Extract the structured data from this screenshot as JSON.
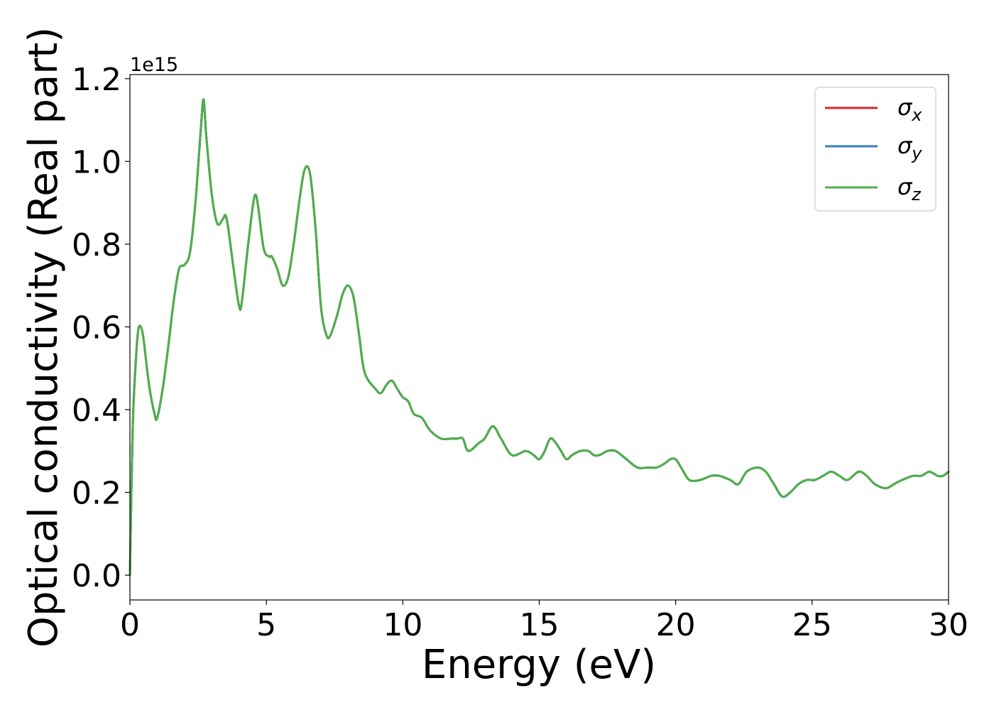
{
  "chart_data": {
    "type": "line",
    "title": "",
    "xlabel": "Energy (eV)",
    "ylabel": "Optical conductivity (Real part)",
    "y_offset_label": "1e15",
    "xlim": [
      0,
      30
    ],
    "ylim": [
      -0.06,
      1.21
    ],
    "y_scale_factor": 1000000000000000.0,
    "x_ticks": [
      0,
      5,
      10,
      15,
      20,
      25,
      30
    ],
    "x_tick_labels": [
      "0",
      "5",
      "10",
      "15",
      "20",
      "25",
      "30"
    ],
    "y_ticks": [
      0.0,
      0.2,
      0.4,
      0.6,
      0.8,
      1.0,
      1.2
    ],
    "y_tick_labels": [
      "0.0",
      "0.2",
      "0.4",
      "0.6",
      "0.8",
      "1.0",
      "1.2"
    ],
    "grid": false,
    "legend_position": "top-right",
    "x": [
      0,
      0.1,
      0.2,
      0.3,
      0.4,
      0.5,
      0.7,
      0.9,
      1.0,
      1.2,
      1.4,
      1.6,
      1.8,
      2.0,
      2.2,
      2.4,
      2.6,
      2.7,
      2.8,
      3.0,
      3.2,
      3.4,
      3.5,
      3.6,
      3.8,
      4.0,
      4.1,
      4.3,
      4.5,
      4.6,
      4.7,
      4.9,
      5.1,
      5.2,
      5.4,
      5.6,
      5.8,
      6.0,
      6.2,
      6.4,
      6.6,
      6.8,
      7.0,
      7.2,
      7.35,
      7.6,
      7.8,
      8.0,
      8.2,
      8.4,
      8.6,
      9.0,
      9.2,
      9.4,
      9.6,
      9.8,
      10.0,
      10.2,
      10.4,
      10.7,
      11.0,
      11.4,
      11.8,
      12.0,
      12.2,
      12.4,
      12.8,
      13.0,
      13.3,
      13.6,
      14.0,
      14.5,
      14.8,
      15.0,
      15.2,
      15.4,
      15.6,
      15.8,
      16.0,
      16.2,
      16.5,
      16.8,
      17.0,
      17.2,
      17.5,
      17.8,
      18.2,
      18.6,
      19.0,
      19.3,
      19.6,
      19.8,
      20.0,
      20.2,
      20.5,
      20.9,
      21.3,
      21.6,
      22.0,
      22.3,
      22.6,
      23.0,
      23.3,
      23.6,
      23.9,
      24.2,
      24.5,
      24.8,
      25.1,
      25.4,
      25.7,
      26.0,
      26.3,
      26.7,
      27.0,
      27.3,
      27.7,
      28.0,
      28.3,
      28.7,
      29.0,
      29.3,
      29.6,
      29.8,
      30.0
    ],
    "series": [
      {
        "name": "σx",
        "color": "#d62728",
        "values": [
          0.0,
          0.35,
          0.5,
          0.59,
          0.6,
          0.57,
          0.46,
          0.39,
          0.38,
          0.45,
          0.55,
          0.66,
          0.74,
          0.75,
          0.78,
          0.9,
          1.08,
          1.15,
          1.06,
          0.92,
          0.85,
          0.86,
          0.87,
          0.84,
          0.74,
          0.65,
          0.66,
          0.78,
          0.89,
          0.92,
          0.89,
          0.79,
          0.77,
          0.77,
          0.74,
          0.7,
          0.72,
          0.8,
          0.9,
          0.98,
          0.97,
          0.84,
          0.65,
          0.58,
          0.58,
          0.63,
          0.68,
          0.7,
          0.67,
          0.58,
          0.49,
          0.45,
          0.44,
          0.46,
          0.47,
          0.45,
          0.43,
          0.42,
          0.39,
          0.38,
          0.35,
          0.33,
          0.33,
          0.33,
          0.33,
          0.3,
          0.32,
          0.33,
          0.36,
          0.33,
          0.29,
          0.3,
          0.29,
          0.28,
          0.3,
          0.33,
          0.32,
          0.3,
          0.28,
          0.29,
          0.3,
          0.3,
          0.29,
          0.29,
          0.3,
          0.3,
          0.28,
          0.26,
          0.26,
          0.26,
          0.27,
          0.28,
          0.28,
          0.26,
          0.23,
          0.23,
          0.24,
          0.24,
          0.23,
          0.22,
          0.25,
          0.26,
          0.25,
          0.22,
          0.19,
          0.2,
          0.22,
          0.23,
          0.23,
          0.24,
          0.25,
          0.24,
          0.23,
          0.25,
          0.24,
          0.22,
          0.21,
          0.22,
          0.23,
          0.24,
          0.24,
          0.25,
          0.24,
          0.24,
          0.25
        ]
      },
      {
        "name": "σy",
        "color": "#377eb8",
        "values": [
          0.0,
          0.35,
          0.5,
          0.59,
          0.6,
          0.57,
          0.46,
          0.39,
          0.38,
          0.45,
          0.55,
          0.66,
          0.74,
          0.75,
          0.78,
          0.9,
          1.08,
          1.15,
          1.06,
          0.92,
          0.85,
          0.86,
          0.87,
          0.84,
          0.74,
          0.65,
          0.66,
          0.78,
          0.89,
          0.92,
          0.89,
          0.79,
          0.77,
          0.77,
          0.74,
          0.7,
          0.72,
          0.8,
          0.9,
          0.98,
          0.97,
          0.84,
          0.65,
          0.58,
          0.58,
          0.63,
          0.68,
          0.7,
          0.67,
          0.58,
          0.49,
          0.45,
          0.44,
          0.46,
          0.47,
          0.45,
          0.43,
          0.42,
          0.39,
          0.38,
          0.35,
          0.33,
          0.33,
          0.33,
          0.33,
          0.3,
          0.32,
          0.33,
          0.36,
          0.33,
          0.29,
          0.3,
          0.29,
          0.28,
          0.3,
          0.33,
          0.32,
          0.3,
          0.28,
          0.29,
          0.3,
          0.3,
          0.29,
          0.29,
          0.3,
          0.3,
          0.28,
          0.26,
          0.26,
          0.26,
          0.27,
          0.28,
          0.28,
          0.26,
          0.23,
          0.23,
          0.24,
          0.24,
          0.23,
          0.22,
          0.25,
          0.26,
          0.25,
          0.22,
          0.19,
          0.2,
          0.22,
          0.23,
          0.23,
          0.24,
          0.25,
          0.24,
          0.23,
          0.25,
          0.24,
          0.22,
          0.21,
          0.22,
          0.23,
          0.24,
          0.24,
          0.25,
          0.24,
          0.24,
          0.25
        ]
      },
      {
        "name": "σz",
        "color": "#4daf4a",
        "values": [
          0.0,
          0.35,
          0.5,
          0.59,
          0.6,
          0.57,
          0.46,
          0.39,
          0.38,
          0.45,
          0.55,
          0.66,
          0.74,
          0.75,
          0.78,
          0.9,
          1.08,
          1.15,
          1.06,
          0.92,
          0.85,
          0.86,
          0.87,
          0.84,
          0.74,
          0.65,
          0.66,
          0.78,
          0.89,
          0.92,
          0.89,
          0.79,
          0.77,
          0.77,
          0.74,
          0.7,
          0.72,
          0.8,
          0.9,
          0.98,
          0.97,
          0.84,
          0.65,
          0.58,
          0.58,
          0.63,
          0.68,
          0.7,
          0.67,
          0.58,
          0.49,
          0.45,
          0.44,
          0.46,
          0.47,
          0.45,
          0.43,
          0.42,
          0.39,
          0.38,
          0.35,
          0.33,
          0.33,
          0.33,
          0.33,
          0.3,
          0.32,
          0.33,
          0.36,
          0.33,
          0.29,
          0.3,
          0.29,
          0.28,
          0.3,
          0.33,
          0.32,
          0.3,
          0.28,
          0.29,
          0.3,
          0.3,
          0.29,
          0.29,
          0.3,
          0.3,
          0.28,
          0.26,
          0.26,
          0.26,
          0.27,
          0.28,
          0.28,
          0.26,
          0.23,
          0.23,
          0.24,
          0.24,
          0.23,
          0.22,
          0.25,
          0.26,
          0.25,
          0.22,
          0.19,
          0.2,
          0.22,
          0.23,
          0.23,
          0.24,
          0.25,
          0.24,
          0.23,
          0.25,
          0.24,
          0.22,
          0.21,
          0.22,
          0.23,
          0.24,
          0.24,
          0.25,
          0.24,
          0.24,
          0.25
        ]
      }
    ],
    "legend": [
      {
        "symbol": "σ",
        "subscript": "x"
      },
      {
        "symbol": "σ",
        "subscript": "y"
      },
      {
        "symbol": "σ",
        "subscript": "z"
      }
    ]
  }
}
